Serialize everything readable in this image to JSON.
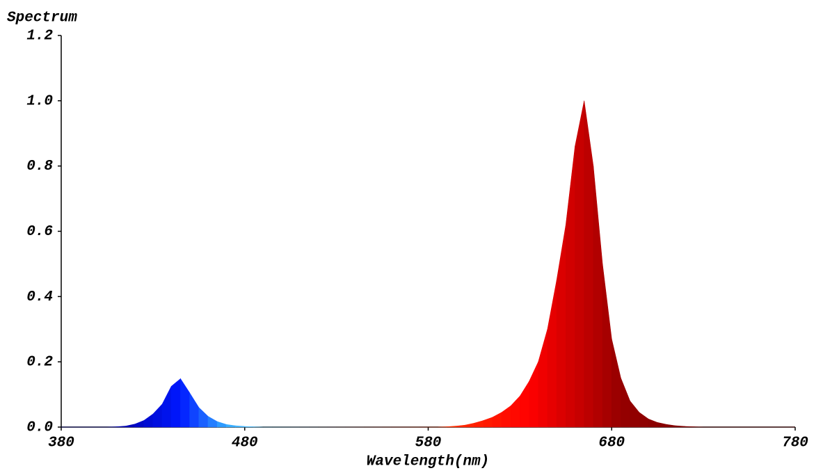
{
  "chart_data": {
    "type": "area",
    "title": "Spectrum",
    "x_label": "Wavelength(nm)",
    "x": [
      380,
      385,
      390,
      395,
      400,
      405,
      410,
      415,
      420,
      425,
      430,
      435,
      440,
      445,
      450,
      455,
      460,
      465,
      470,
      475,
      480,
      485,
      490,
      495,
      500,
      505,
      510,
      515,
      520,
      525,
      530,
      535,
      540,
      545,
      550,
      555,
      560,
      565,
      570,
      575,
      580,
      585,
      590,
      595,
      600,
      605,
      610,
      615,
      620,
      625,
      630,
      635,
      640,
      645,
      650,
      655,
      660,
      665,
      670,
      675,
      680,
      685,
      690,
      695,
      700,
      705,
      710,
      715,
      720,
      725,
      730,
      735,
      740,
      745,
      750,
      755,
      760,
      765,
      770,
      775,
      780
    ],
    "values": [
      0,
      0,
      0,
      0,
      0,
      0,
      0.001,
      0.003,
      0.009,
      0.02,
      0.04,
      0.07,
      0.125,
      0.148,
      0.105,
      0.06,
      0.033,
      0.017,
      0.008,
      0.004,
      0.002,
      0.001,
      0,
      0,
      0,
      0,
      0,
      0,
      0,
      0,
      0,
      0,
      0,
      0,
      0,
      0,
      0,
      0,
      0,
      0,
      0,
      0,
      0.001,
      0.003,
      0.006,
      0.012,
      0.02,
      0.03,
      0.045,
      0.065,
      0.095,
      0.14,
      0.2,
      0.3,
      0.45,
      0.62,
      0.86,
      1.0,
      0.8,
      0.5,
      0.27,
      0.15,
      0.08,
      0.045,
      0.025,
      0.014,
      0.008,
      0.004,
      0.002,
      0.001,
      0,
      0,
      0,
      0,
      0,
      0,
      0,
      0,
      0,
      0,
      0
    ],
    "fill_stops": [
      [
        410,
        "#0000a8"
      ],
      [
        445,
        "#0018ff"
      ],
      [
        470,
        "#33aaff"
      ],
      [
        490,
        "#66ccff"
      ],
      [
        590,
        "#ff3300"
      ],
      [
        635,
        "#ff0000"
      ],
      [
        662,
        "#c80000"
      ],
      [
        685,
        "#960000"
      ],
      [
        730,
        "#7a0000"
      ]
    ],
    "xlim": [
      380,
      780
    ],
    "xticks": [
      380,
      480,
      580,
      680,
      780
    ],
    "ylim": [
      0,
      1.2
    ],
    "yticks": [
      {
        "value": 0,
        "label": "0.0"
      },
      {
        "value": 0.2,
        "label": "0.2"
      },
      {
        "value": 0.4,
        "label": "0.4"
      },
      {
        "value": 0.6,
        "label": "0.6"
      },
      {
        "value": 0.8,
        "label": "0.8"
      },
      {
        "value": 1.0,
        "label": "1.0"
      },
      {
        "value": 1.2,
        "label": "1.2"
      }
    ]
  }
}
